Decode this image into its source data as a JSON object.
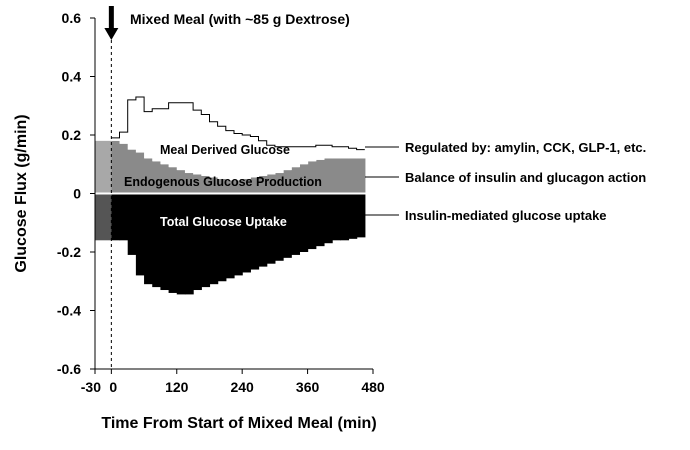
{
  "chart_data": {
    "type": "area",
    "title": "Mixed Meal (with ~85 g Dextrose)",
    "xlabel": "Time From Start of Mixed Meal (min)",
    "ylabel": "Glucose Flux (g/min)",
    "xlim": [
      -30,
      480
    ],
    "ylim": [
      -0.6,
      0.6
    ],
    "xticks": [
      "-30",
      "0",
      "120",
      "240",
      "360",
      "480"
    ],
    "yticks": [
      "-0.6",
      "-0.4",
      "-0.2",
      "0",
      "0.2",
      "0.4",
      "0.6"
    ],
    "step_minutes": 15,
    "pre_meal": {
      "x0": -30,
      "x1": 0,
      "endogenous_glucose_production": 0.18,
      "total_glucose_uptake": -0.16
    },
    "bins_start": 0,
    "series": [
      {
        "name": "Endogenous Glucose Production",
        "color": "#8a8a8a",
        "values": [
          0.18,
          0.17,
          0.15,
          0.14,
          0.12,
          0.11,
          0.1,
          0.09,
          0.08,
          0.07,
          0.065,
          0.06,
          0.055,
          0.05,
          0.045,
          0.045,
          0.05,
          0.055,
          0.06,
          0.065,
          0.07,
          0.08,
          0.09,
          0.1,
          0.11,
          0.115,
          0.12,
          0.12,
          0.12,
          0.12,
          0.12
        ]
      },
      {
        "name": "Meal Derived Glucose",
        "color": "#ffffff",
        "values": [
          0.01,
          0.04,
          0.17,
          0.19,
          0.16,
          0.18,
          0.19,
          0.22,
          0.23,
          0.24,
          0.22,
          0.21,
          0.19,
          0.18,
          0.17,
          0.16,
          0.15,
          0.14,
          0.12,
          0.1,
          0.09,
          0.08,
          0.07,
          0.06,
          0.05,
          0.05,
          0.045,
          0.04,
          0.04,
          0.035,
          0.03
        ]
      },
      {
        "name": "Total Glucose Uptake",
        "color": "#000000",
        "values": [
          -0.16,
          -0.16,
          -0.21,
          -0.28,
          -0.31,
          -0.32,
          -0.33,
          -0.34,
          -0.345,
          -0.345,
          -0.33,
          -0.32,
          -0.31,
          -0.3,
          -0.29,
          -0.28,
          -0.27,
          -0.26,
          -0.25,
          -0.24,
          -0.23,
          -0.22,
          -0.21,
          -0.2,
          -0.19,
          -0.18,
          -0.17,
          -0.16,
          -0.16,
          -0.155,
          -0.15
        ]
      }
    ],
    "inner_labels": {
      "meal": "Meal Derived Glucose",
      "egp": "Endogenous Glucose Production",
      "uptake": "Total Glucose Uptake"
    },
    "annotations": [
      "Regulated by: amylin, CCK, GLP-1, etc.",
      "Balance of insulin and glucagon action",
      "Insulin-mediated glucose uptake"
    ],
    "meal_marker_x": 0
  }
}
